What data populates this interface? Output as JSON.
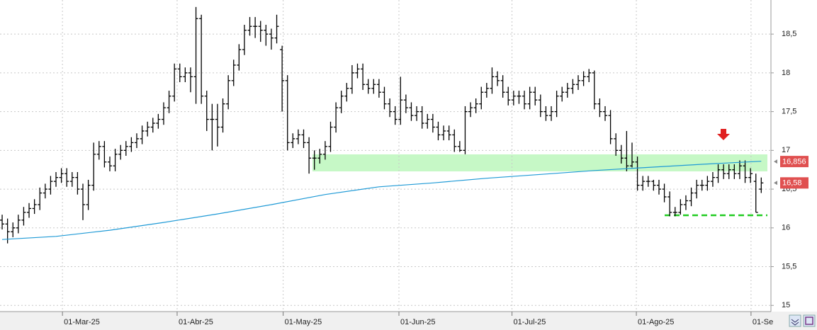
{
  "chart_data": {
    "type": "ohlc",
    "color": "#000000",
    "xlim": [
      -0.4,
      142.8
    ],
    "ylim": [
      14.92,
      18.94
    ],
    "yticks": [
      {
        "value": 15,
        "label": "15"
      },
      {
        "value": 15.5,
        "label": "15,5"
      },
      {
        "value": 16,
        "label": "16"
      },
      {
        "value": 16.5,
        "label": "16,5"
      },
      {
        "value": 17,
        "label": "17"
      },
      {
        "value": 17.5,
        "label": "17,5"
      },
      {
        "value": 18,
        "label": "18"
      },
      {
        "value": 18.5,
        "label": "18,5"
      }
    ],
    "xticks": [
      {
        "value": 11.2,
        "label": "01-Mar-25"
      },
      {
        "value": 32.5,
        "label": "01-Abr-25"
      },
      {
        "value": 52.2,
        "label": "01-May-25"
      },
      {
        "value": 73.7,
        "label": "01-Jun-25"
      },
      {
        "value": 94.7,
        "label": "01-Jul-25"
      },
      {
        "value": 117.8,
        "label": "01-Ago-25"
      },
      {
        "value": 139.1,
        "label": "01-Se"
      }
    ],
    "grid": true,
    "open": [
      16.1,
      16.05,
      15.95,
      16.0,
      16.1,
      16.2,
      16.25,
      16.3,
      16.45,
      16.5,
      16.6,
      16.65,
      16.7,
      16.6,
      16.65,
      16.5,
      16.3,
      16.55,
      16.95,
      17.05,
      16.85,
      16.8,
      16.95,
      17.0,
      17.05,
      17.1,
      17.15,
      17.25,
      17.3,
      17.35,
      17.4,
      17.55,
      17.7,
      18.05,
      17.95,
      18.0,
      17.95,
      18.7,
      17.7,
      17.4,
      17.4,
      17.3,
      17.6,
      17.9,
      18.1,
      18.3,
      18.55,
      18.6,
      18.6,
      18.55,
      18.5,
      18.45,
      18.3,
      17.9,
      17.1,
      17.15,
      17.2,
      17.1,
      16.9,
      16.9,
      16.95,
      17.05,
      17.3,
      17.55,
      17.7,
      17.8,
      18.0,
      18.05,
      17.85,
      17.8,
      17.85,
      17.75,
      17.6,
      17.5,
      17.4,
      17.65,
      17.55,
      17.45,
      17.5,
      17.35,
      17.4,
      17.3,
      17.2,
      17.25,
      17.2,
      17.05,
      17.0,
      17.5,
      17.55,
      17.6,
      17.75,
      17.8,
      17.95,
      17.9,
      17.75,
      17.65,
      17.7,
      17.7,
      17.6,
      17.75,
      17.65,
      17.5,
      17.45,
      17.5,
      17.7,
      17.75,
      17.8,
      17.85,
      17.9,
      17.95,
      18.0,
      17.6,
      17.5,
      17.45,
      17.15,
      17.0,
      16.9,
      16.8,
      16.85,
      16.55,
      16.6,
      16.6,
      16.55,
      16.5,
      16.4,
      16.2,
      16.2,
      16.3,
      16.35,
      16.45,
      16.55,
      16.55,
      16.6,
      16.65,
      16.75,
      16.7,
      16.75,
      16.7,
      16.8,
      16.65,
      16.6,
      16.5
    ],
    "high": [
      16.17,
      16.12,
      16.07,
      16.17,
      16.27,
      16.32,
      16.37,
      16.52,
      16.57,
      16.67,
      16.72,
      16.77,
      16.77,
      16.72,
      16.72,
      16.57,
      16.62,
      17.1,
      17.12,
      17.12,
      16.92,
      17.02,
      17.07,
      17.12,
      17.17,
      17.22,
      17.32,
      17.37,
      17.42,
      17.47,
      17.62,
      17.77,
      18.12,
      18.12,
      18.07,
      18.07,
      18.85,
      18.75,
      17.77,
      17.6,
      17.6,
      17.67,
      17.97,
      18.17,
      18.37,
      18.62,
      18.72,
      18.72,
      18.67,
      18.62,
      18.57,
      18.75,
      18.35,
      17.97,
      17.22,
      17.27,
      17.27,
      17.17,
      17.0,
      17.02,
      17.12,
      17.37,
      17.62,
      17.77,
      17.87,
      18.1,
      18.12,
      18.12,
      17.92,
      17.92,
      17.92,
      17.82,
      17.67,
      17.57,
      17.95,
      17.72,
      17.62,
      17.57,
      17.57,
      17.47,
      17.47,
      17.37,
      17.32,
      17.32,
      17.27,
      17.12,
      17.57,
      17.62,
      17.67,
      17.82,
      17.87,
      18.07,
      18.02,
      17.97,
      17.82,
      17.77,
      17.77,
      17.77,
      17.82,
      17.82,
      17.72,
      17.57,
      17.57,
      17.77,
      17.82,
      17.87,
      17.92,
      17.97,
      18.02,
      18.05,
      18.03,
      17.67,
      17.57,
      17.52,
      17.22,
      17.07,
      17.25,
      17.1,
      16.92,
      16.67,
      16.67,
      16.62,
      16.62,
      16.57,
      16.47,
      16.27,
      16.37,
      16.42,
      16.52,
      16.62,
      16.62,
      16.67,
      16.72,
      16.82,
      16.82,
      16.82,
      16.82,
      16.87,
      16.87,
      16.77,
      16.7,
      16.65
    ],
    "low": [
      15.98,
      15.8,
      15.88,
      15.93,
      16.03,
      16.13,
      16.18,
      16.23,
      16.38,
      16.43,
      16.53,
      16.58,
      16.53,
      16.53,
      16.43,
      16.1,
      16.23,
      16.48,
      16.88,
      16.78,
      16.73,
      16.73,
      16.88,
      16.93,
      16.98,
      17.03,
      17.08,
      17.18,
      17.23,
      17.28,
      17.33,
      17.48,
      17.63,
      17.88,
      17.88,
      17.75,
      17.6,
      17.6,
      17.25,
      17.0,
      17.05,
      17.23,
      17.53,
      17.83,
      18.03,
      18.23,
      18.48,
      18.45,
      18.4,
      18.35,
      18.3,
      18.38,
      17.5,
      17.0,
      17.03,
      17.08,
      17.03,
      16.7,
      16.75,
      16.83,
      16.88,
      16.98,
      17.23,
      17.48,
      17.63,
      17.73,
      17.93,
      17.78,
      17.73,
      17.73,
      17.68,
      17.53,
      17.43,
      17.33,
      17.33,
      17.48,
      17.38,
      17.38,
      17.28,
      17.28,
      17.23,
      17.13,
      17.13,
      17.13,
      16.98,
      16.98,
      16.95,
      17.43,
      17.48,
      17.53,
      17.68,
      17.73,
      17.83,
      17.68,
      17.58,
      17.58,
      17.6,
      17.53,
      17.53,
      17.58,
      17.43,
      17.38,
      17.38,
      17.43,
      17.63,
      17.68,
      17.73,
      17.78,
      17.83,
      17.88,
      17.53,
      17.43,
      17.38,
      17.08,
      16.93,
      16.83,
      16.73,
      16.78,
      16.48,
      16.48,
      16.53,
      16.48,
      16.43,
      16.33,
      16.15,
      16.15,
      16.17,
      16.23,
      16.28,
      16.38,
      16.48,
      16.48,
      16.53,
      16.58,
      16.63,
      16.63,
      16.63,
      16.63,
      16.58,
      16.58,
      16.2,
      16.45
    ],
    "close": [
      16.05,
      15.95,
      16.0,
      16.1,
      16.2,
      16.25,
      16.3,
      16.45,
      16.5,
      16.6,
      16.65,
      16.7,
      16.6,
      16.65,
      16.5,
      16.3,
      16.55,
      16.95,
      17.05,
      16.85,
      16.8,
      16.95,
      17.0,
      17.05,
      17.1,
      17.15,
      17.25,
      17.3,
      17.35,
      17.4,
      17.55,
      17.7,
      18.05,
      17.95,
      18.0,
      17.95,
      18.7,
      17.7,
      17.4,
      17.4,
      17.3,
      17.6,
      17.9,
      18.1,
      18.3,
      18.55,
      18.6,
      18.6,
      18.55,
      18.5,
      18.45,
      18.6,
      17.9,
      17.1,
      17.15,
      17.2,
      17.1,
      16.9,
      16.9,
      16.95,
      17.05,
      17.3,
      17.55,
      17.7,
      17.8,
      18.0,
      18.05,
      17.85,
      17.8,
      17.85,
      17.75,
      17.6,
      17.5,
      17.4,
      17.65,
      17.55,
      17.45,
      17.5,
      17.35,
      17.4,
      17.3,
      17.2,
      17.25,
      17.2,
      17.05,
      17.0,
      17.5,
      17.55,
      17.6,
      17.75,
      17.8,
      17.95,
      17.9,
      17.75,
      17.65,
      17.7,
      17.7,
      17.6,
      17.75,
      17.65,
      17.5,
      17.45,
      17.5,
      17.7,
      17.75,
      17.8,
      17.85,
      17.9,
      17.95,
      18.0,
      17.6,
      17.5,
      17.45,
      17.15,
      17.0,
      16.9,
      16.8,
      16.85,
      16.55,
      16.6,
      16.6,
      16.55,
      16.5,
      16.4,
      16.2,
      16.2,
      16.3,
      16.35,
      16.45,
      16.55,
      16.55,
      16.6,
      16.65,
      16.75,
      16.7,
      16.75,
      16.7,
      16.8,
      16.65,
      16.7,
      16.2,
      16.58
    ],
    "moving_average": {
      "color": "#1f9ad6",
      "x": [
        0,
        10,
        20,
        30,
        40,
        50,
        60,
        70,
        80,
        90,
        100,
        110,
        120,
        130,
        141
      ],
      "values": [
        15.85,
        15.89,
        15.97,
        16.07,
        16.18,
        16.3,
        16.43,
        16.53,
        16.58,
        16.64,
        16.69,
        16.74,
        16.78,
        16.82,
        16.86
      ]
    },
    "price_labels": [
      {
        "value": 16.856,
        "label": "16,856",
        "color": "#e05050"
      },
      {
        "value": 16.58,
        "label": "16,58",
        "color": "#e05050"
      }
    ]
  }
}
